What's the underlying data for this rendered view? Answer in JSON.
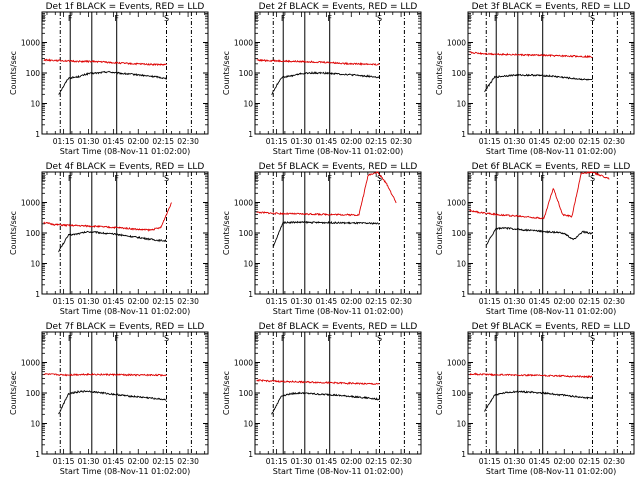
{
  "figure": {
    "xlabel": "Start Time (08-Nov-11 01:02:00)",
    "ylabel": "Counts/sec",
    "x_ticks": [
      "01:15",
      "01:30",
      "01:45",
      "02:00",
      "02:15",
      "02:30"
    ],
    "y_ticks": [
      "1",
      "10",
      "100",
      "1000"
    ],
    "colors": {
      "events": "#000000",
      "lld": "#dd0000",
      "axes": "#000000"
    }
  },
  "chart_data": [
    {
      "type": "line",
      "title": "Det 1f BLACK = Events, RED = LLD",
      "flags": [
        {
          "label": "E",
          "x": "01:03"
        },
        {
          "label": "F",
          "x": "01:19"
        },
        {
          "label": "F",
          "x": "01:47"
        },
        {
          "label": "S",
          "x": "02:17"
        }
      ],
      "solid_lines": [
        "01:19",
        "01:32",
        "01:47"
      ],
      "dashdot_lines": [
        "01:13",
        "02:17",
        "02:32"
      ],
      "series": [
        {
          "name": "Events",
          "start": "01:12",
          "end": "02:17",
          "values": [
            20,
            68,
            75,
            95,
            100,
            110,
            100,
            93,
            88,
            80,
            75,
            65
          ]
        },
        {
          "name": "LLD",
          "start": "01:03",
          "end": "02:17",
          "values": [
            270,
            260,
            250,
            240,
            240,
            235,
            220,
            210,
            200,
            195,
            190,
            185
          ]
        }
      ]
    },
    {
      "type": "line",
      "title": "Det 2f BLACK = Events, RED = LLD",
      "flags": [
        {
          "label": "E",
          "x": "01:03"
        },
        {
          "label": "F",
          "x": "01:19"
        },
        {
          "label": "F",
          "x": "01:47"
        },
        {
          "label": "S",
          "x": "02:17"
        }
      ],
      "solid_lines": [
        "01:19",
        "01:32",
        "01:47"
      ],
      "dashdot_lines": [
        "01:13",
        "02:17",
        "02:32"
      ],
      "series": [
        {
          "name": "Events",
          "start": "01:12",
          "end": "02:17",
          "values": [
            20,
            72,
            80,
            95,
            100,
            100,
            98,
            92,
            88,
            82,
            78,
            70
          ]
        },
        {
          "name": "LLD",
          "start": "01:03",
          "end": "02:17",
          "values": [
            260,
            255,
            250,
            240,
            238,
            232,
            225,
            215,
            205,
            200,
            195,
            190
          ]
        }
      ]
    },
    {
      "type": "line",
      "title": "Det 3f BLACK = Events, RED = LLD",
      "flags": [
        {
          "label": "E",
          "x": "01:03"
        },
        {
          "label": "F",
          "x": "01:19"
        },
        {
          "label": "F",
          "x": "01:47"
        },
        {
          "label": "S",
          "x": "02:17"
        }
      ],
      "solid_lines": [
        "01:19",
        "01:32",
        "01:47"
      ],
      "dashdot_lines": [
        "01:13",
        "02:17",
        "02:32"
      ],
      "series": [
        {
          "name": "Events",
          "start": "01:12",
          "end": "02:17",
          "values": [
            25,
            72,
            80,
            85,
            85,
            85,
            82,
            78,
            72,
            66,
            62,
            58
          ]
        },
        {
          "name": "LLD",
          "start": "01:03",
          "end": "02:17",
          "values": [
            470,
            440,
            420,
            410,
            400,
            390,
            385,
            375,
            365,
            360,
            350,
            340
          ]
        }
      ]
    },
    {
      "type": "line",
      "title": "Det 4f BLACK = Events, RED = LLD",
      "flags": [
        {
          "label": "E",
          "x": "01:03"
        },
        {
          "label": "F",
          "x": "01:19"
        },
        {
          "label": "F",
          "x": "01:47"
        },
        {
          "label": "S",
          "x": "02:17"
        }
      ],
      "solid_lines": [
        "01:19",
        "01:32",
        "01:47"
      ],
      "dashdot_lines": [
        "01:13",
        "02:17",
        "02:32"
      ],
      "series": [
        {
          "name": "Events",
          "start": "01:12",
          "end": "02:17",
          "values": [
            25,
            85,
            95,
            110,
            105,
            95,
            90,
            80,
            72,
            65,
            58,
            55
          ]
        },
        {
          "name": "LLD",
          "start": "01:03",
          "end": "02:20",
          "values": [
            220,
            190,
            180,
            175,
            170,
            165,
            155,
            150,
            140,
            130,
            125,
            150,
            1000
          ]
        }
      ]
    },
    {
      "type": "line",
      "title": "Det 5f BLACK = Events, RED = LLD",
      "flags": [
        {
          "label": "E",
          "x": "01:03"
        },
        {
          "label": "F",
          "x": "01:19"
        },
        {
          "label": "F",
          "x": "01:47"
        },
        {
          "label": "S",
          "x": "02:17"
        }
      ],
      "solid_lines": [
        "01:19",
        "01:32",
        "01:47"
      ],
      "dashdot_lines": [
        "01:13",
        "02:17",
        "02:32"
      ],
      "series": [
        {
          "name": "Events",
          "start": "01:13",
          "end": "02:17",
          "values": [
            35,
            220,
            225,
            225,
            222,
            220,
            218,
            215,
            212,
            210,
            208,
            205
          ]
        },
        {
          "name": "LLD",
          "start": "01:03",
          "end": "02:27",
          "values": [
            480,
            460,
            440,
            430,
            425,
            420,
            415,
            410,
            405,
            400,
            395,
            390,
            8000,
            10000,
            4000,
            1000
          ]
        }
      ]
    },
    {
      "type": "line",
      "title": "Det 6f BLACK = Events, RED = LLD",
      "flags": [
        {
          "label": "E",
          "x": "01:03"
        },
        {
          "label": "F",
          "x": "01:19"
        },
        {
          "label": "F",
          "x": "01:47"
        },
        {
          "label": "S",
          "x": "02:17"
        }
      ],
      "solid_lines": [
        "01:19",
        "01:32",
        "01:47"
      ],
      "dashdot_lines": [
        "01:13",
        "02:17",
        "02:32"
      ],
      "series": [
        {
          "name": "Events",
          "start": "01:13",
          "end": "02:17",
          "values": [
            40,
            140,
            145,
            135,
            125,
            120,
            112,
            105,
            100,
            60,
            110,
            95
          ]
        },
        {
          "name": "LLD",
          "start": "01:03",
          "end": "02:27",
          "values": [
            550,
            470,
            440,
            400,
            380,
            360,
            340,
            320,
            300,
            3000,
            400,
            350,
            9000,
            10000,
            8000,
            6000
          ]
        }
      ]
    },
    {
      "type": "line",
      "title": "Det 7f BLACK = Events, RED = LLD",
      "flags": [
        {
          "label": "E",
          "x": "01:03"
        },
        {
          "label": "F",
          "x": "01:19"
        },
        {
          "label": "F",
          "x": "01:47"
        },
        {
          "label": "S",
          "x": "02:17"
        }
      ],
      "solid_lines": [
        "01:19",
        "01:32",
        "01:47"
      ],
      "dashdot_lines": [
        "01:13",
        "02:17",
        "02:32"
      ],
      "series": [
        {
          "name": "Events",
          "start": "01:12",
          "end": "02:17",
          "values": [
            20,
            95,
            110,
            115,
            105,
            95,
            88,
            80,
            75,
            70,
            65,
            60
          ]
        },
        {
          "name": "LLD",
          "start": "01:03",
          "end": "02:17",
          "values": [
            420,
            400,
            390,
            400,
            410,
            405,
            400,
            395,
            390,
            385,
            390,
            380
          ]
        }
      ]
    },
    {
      "type": "line",
      "title": "Det 8f BLACK = Events, RED = LLD",
      "flags": [
        {
          "label": "E",
          "x": "01:03"
        },
        {
          "label": "F",
          "x": "01:19"
        },
        {
          "label": "F",
          "x": "01:47"
        },
        {
          "label": "S",
          "x": "02:17"
        }
      ],
      "solid_lines": [
        "01:19",
        "01:32",
        "01:47"
      ],
      "dashdot_lines": [
        "01:13",
        "02:17",
        "02:32"
      ],
      "series": [
        {
          "name": "Events",
          "start": "01:12",
          "end": "02:17",
          "values": [
            20,
            80,
            95,
            100,
            95,
            90,
            88,
            82,
            78,
            72,
            68,
            62
          ]
        },
        {
          "name": "LLD",
          "start": "01:03",
          "end": "02:17",
          "values": [
            260,
            250,
            240,
            235,
            230,
            225,
            220,
            215,
            210,
            205,
            200,
            195
          ]
        }
      ]
    },
    {
      "type": "line",
      "title": "Det 9f BLACK = Events, RED = LLD",
      "flags": [
        {
          "label": "E",
          "x": "01:03"
        },
        {
          "label": "F",
          "x": "01:19"
        },
        {
          "label": "F",
          "x": "01:47"
        },
        {
          "label": "S",
          "x": "02:17"
        }
      ],
      "solid_lines": [
        "01:19",
        "01:32",
        "01:47"
      ],
      "dashdot_lines": [
        "01:13",
        "02:17",
        "02:32"
      ],
      "series": [
        {
          "name": "Events",
          "start": "01:12",
          "end": "02:17",
          "values": [
            25,
            85,
            100,
            110,
            110,
            105,
            100,
            92,
            85,
            78,
            72,
            68
          ]
        },
        {
          "name": "LLD",
          "start": "01:03",
          "end": "02:17",
          "values": [
            420,
            410,
            400,
            395,
            390,
            385,
            380,
            370,
            360,
            355,
            350,
            340
          ]
        }
      ]
    }
  ]
}
